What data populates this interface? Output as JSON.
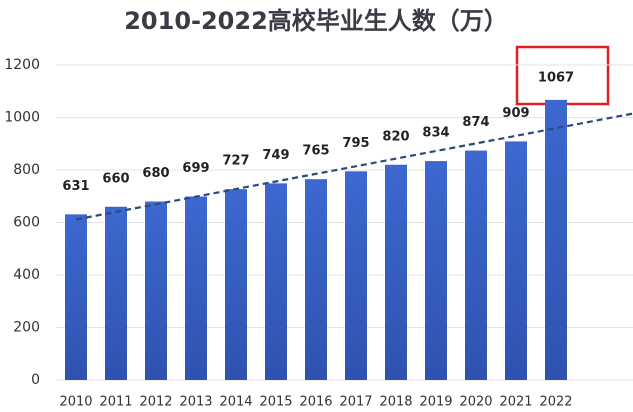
{
  "chart_data": {
    "type": "bar",
    "title": "2010-2022高校毕业生人数（万）",
    "categories": [
      "2010",
      "2011",
      "2012",
      "2013",
      "2014",
      "2015",
      "2016",
      "2017",
      "2018",
      "2019",
      "2020",
      "2021",
      "2022"
    ],
    "values": [
      631,
      660,
      680,
      699,
      727,
      749,
      765,
      795,
      820,
      834,
      874,
      909,
      1067
    ],
    "color": "#3a63c9",
    "ylim": [
      0,
      1200
    ],
    "yticks": [
      0,
      200,
      400,
      600,
      800,
      1000,
      1200
    ],
    "grid": true,
    "trendline": true
  }
}
